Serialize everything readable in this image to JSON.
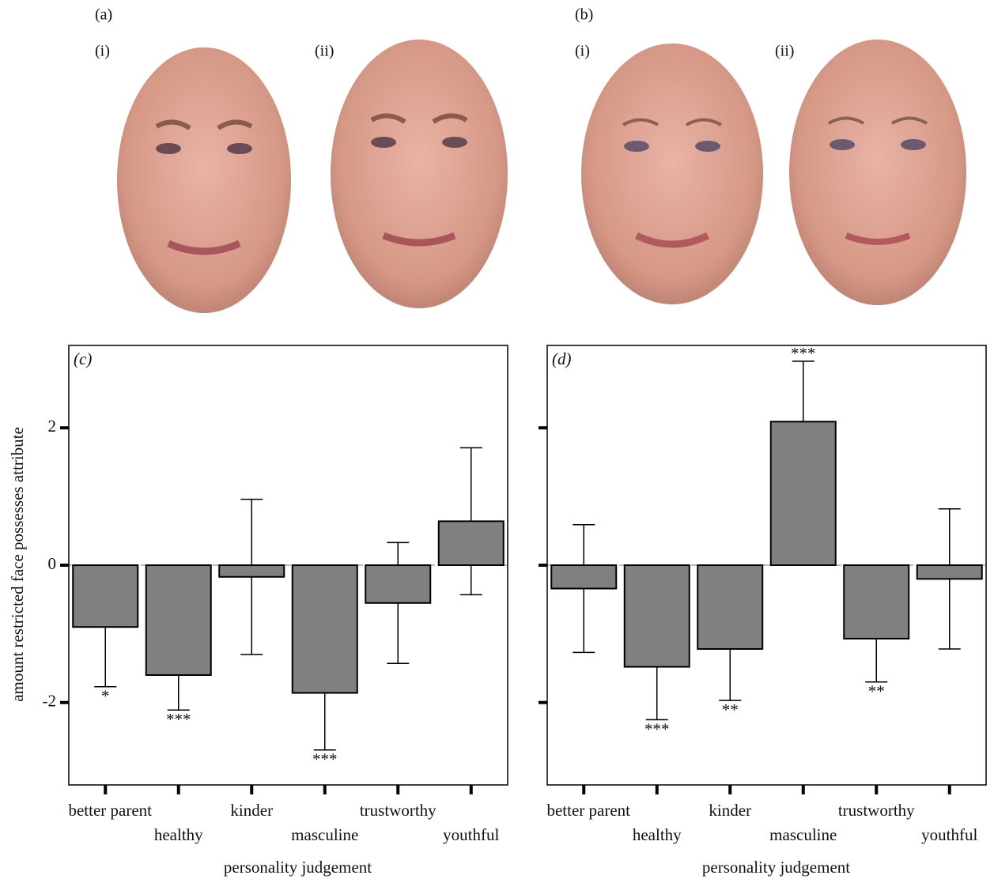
{
  "figure_labels": {
    "a": "(a)",
    "b": "(b)",
    "a_i": "(i)",
    "a_ii": "(ii)",
    "b_i": "(i)",
    "b_ii": "(ii)"
  },
  "chart_data": [
    {
      "type": "bar",
      "panel_label": "(c)",
      "x_label": "personality judgement",
      "y_label": "amount restricted  face possesses attribute",
      "categories": [
        "better parent",
        "healthy",
        "kinder",
        "masculine",
        "trustworthy",
        "youthful"
      ],
      "values": [
        -0.9,
        -1.6,
        -0.17,
        -1.86,
        -0.55,
        0.64
      ],
      "errors": [
        0.87,
        0.51,
        1.13,
        0.83,
        0.88,
        1.07
      ],
      "significance": [
        "*",
        "***",
        null,
        "***",
        null,
        null
      ],
      "color": "#808080",
      "ylim": [
        -3.2,
        3.2
      ],
      "yticks": [
        -2,
        0,
        2
      ],
      "ytick_labels": true
    },
    {
      "type": "bar",
      "panel_label": "(d)",
      "x_label": "personality judgement",
      "categories": [
        "better parent",
        "healthy",
        "kinder",
        "masculine",
        "trustworthy",
        "youthful"
      ],
      "values": [
        -0.34,
        -1.48,
        -1.22,
        2.09,
        -1.07,
        -0.2
      ],
      "errors": [
        0.93,
        0.77,
        0.75,
        0.88,
        0.63,
        1.02
      ],
      "significance": [
        null,
        "***",
        "**",
        "***",
        "**",
        null
      ],
      "color": "#808080",
      "ylim": [
        -3.2,
        3.2
      ],
      "yticks": [
        -2,
        0,
        2
      ],
      "ytick_labels": false
    }
  ]
}
